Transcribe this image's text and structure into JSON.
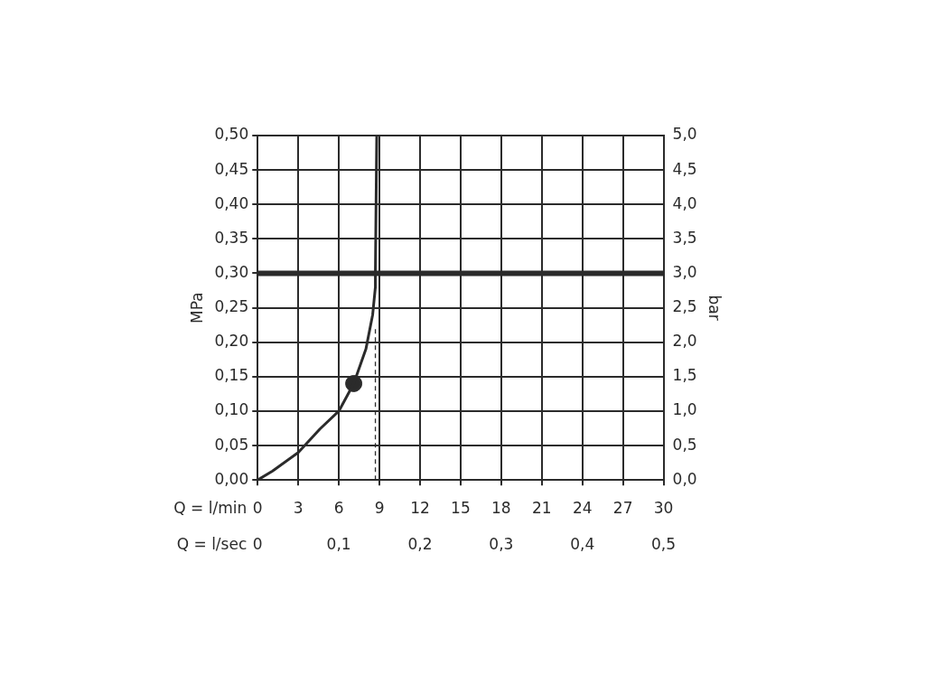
{
  "chart_data": {
    "type": "line",
    "xlabel": "Q = l/min",
    "x2label": "Q = l/sec",
    "ylabel": "MPa",
    "y2label": "bar",
    "xlim": [
      0,
      30
    ],
    "xticks": [
      0,
      3,
      6,
      9,
      12,
      15,
      18,
      21,
      24,
      27,
      30
    ],
    "x2lim": [
      0,
      0.5
    ],
    "x2ticks": [
      0,
      {
        "value": 0.1,
        "label": "0,1"
      },
      {
        "value": 0.2,
        "label": "0,2"
      },
      {
        "value": 0.3,
        "label": "0,3"
      },
      {
        "value": 0.4,
        "label": "0,4"
      },
      {
        "value": 0.5,
        "label": "0,5"
      }
    ],
    "ylim": [
      0,
      0.5
    ],
    "yticks": [
      {
        "value": 0,
        "label": "0,00"
      },
      {
        "value": 0.05,
        "label": "0,05"
      },
      {
        "value": 0.1,
        "label": "0,10"
      },
      {
        "value": 0.15,
        "label": "0,15"
      },
      {
        "value": 0.2,
        "label": "0,20"
      },
      {
        "value": 0.25,
        "label": "0,25"
      },
      {
        "value": 0.3,
        "label": "0,30"
      },
      {
        "value": 0.35,
        "label": "0,35"
      },
      {
        "value": 0.4,
        "label": "0,40"
      },
      {
        "value": 0.45,
        "label": "0,45"
      },
      {
        "value": 0.5,
        "label": "0,50"
      }
    ],
    "y2lim": [
      0,
      5
    ],
    "y2ticks": [
      {
        "value": 0,
        "label": "0,0"
      },
      {
        "value": 0.5,
        "label": "0,5"
      },
      {
        "value": 1,
        "label": "1,0"
      },
      {
        "value": 1.5,
        "label": "1,5"
      },
      {
        "value": 2,
        "label": "2,0"
      },
      {
        "value": 2.5,
        "label": "2,5"
      },
      {
        "value": 3,
        "label": "3,0"
      },
      {
        "value": 3.5,
        "label": "3,5"
      },
      {
        "value": 4,
        "label": "4,0"
      },
      {
        "value": 4.5,
        "label": "4,5"
      },
      {
        "value": 5,
        "label": "5,0"
      }
    ],
    "grid": true,
    "legend": false,
    "ref_lines": [
      {
        "axis": "y",
        "value": 0.3,
        "color": "#2b2b2b"
      }
    ],
    "series": [
      {
        "type": "line",
        "color": "#2b2b2b",
        "marker": "none",
        "line_style": "solid",
        "x": [
          0,
          1.1,
          3,
          4.6,
          6,
          7.1,
          8,
          8.5,
          8.7,
          8.7,
          8.8
        ],
        "values": [
          0,
          0.013,
          0.04,
          0.074,
          0.1,
          0.14,
          0.19,
          0.24,
          0.28,
          0.3,
          0.5
        ]
      },
      {
        "type": "line",
        "color": "#2b2b2b",
        "marker": "none",
        "line_style": "dashed",
        "x": [
          8.7,
          8.7
        ],
        "values": [
          0,
          0.22
        ]
      },
      {
        "type": "scatter",
        "color": "#2b2b2b",
        "marker": "circle",
        "x": [
          7.1
        ],
        "values": [
          0.14
        ]
      }
    ]
  }
}
